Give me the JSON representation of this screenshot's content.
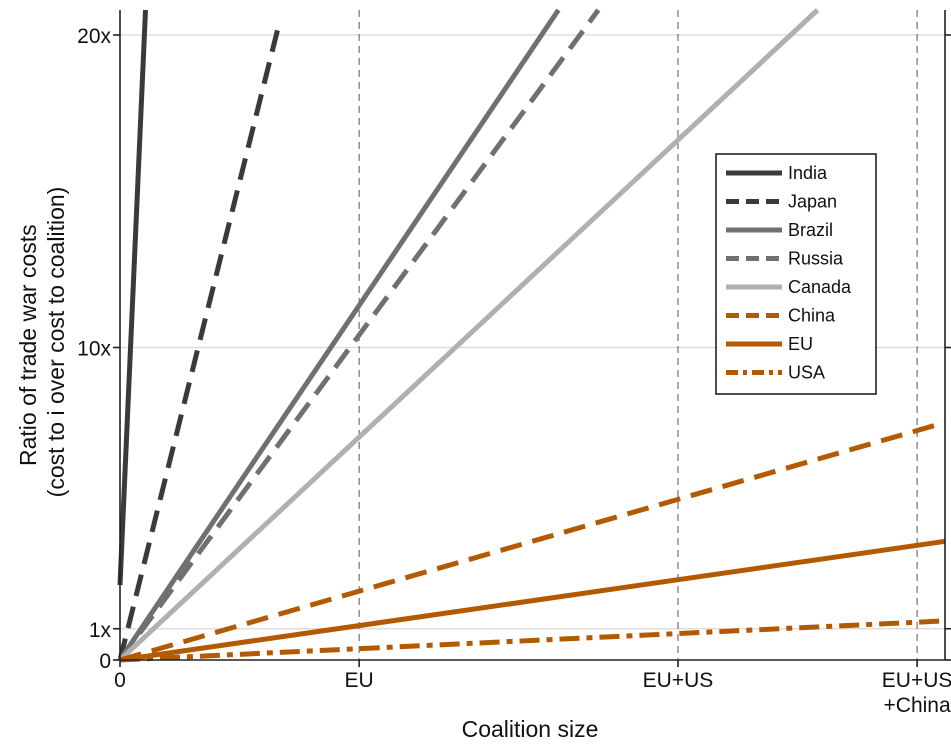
{
  "chart_data": {
    "type": "line",
    "title": "",
    "xlabel": "Coalition size",
    "ylabel": [
      "Ratio of trade war costs",
      "(cost to i over cost to coalition)"
    ],
    "xlim": [
      0,
      1.035
    ],
    "ylim": [
      0,
      20.8
    ],
    "x_ticks": [
      {
        "value": 0,
        "label": [
          "0"
        ]
      },
      {
        "value": 0.3,
        "label": [
          "EU"
        ]
      },
      {
        "value": 0.7,
        "label": [
          "EU+US"
        ]
      },
      {
        "value": 1.0,
        "label": [
          "EU+US",
          "+China"
        ]
      }
    ],
    "y_ticks": [
      {
        "value": 0,
        "label": "0"
      },
      {
        "value": 1,
        "label": "1x"
      },
      {
        "value": 10,
        "label": "10x"
      },
      {
        "value": 20,
        "label": "20x"
      }
    ],
    "vertical_reference_lines": [
      0.3,
      0.7,
      1.0
    ],
    "grid": {
      "horizontal_at": [
        1,
        10,
        20
      ],
      "color": "#d9d9d9"
    },
    "legend": {
      "position": "upper-right"
    },
    "series": [
      {
        "name": "India",
        "color": "#3a3a3a",
        "dash": "solid",
        "points": [
          [
            0.0,
            2.4
          ],
          [
            0.032,
            20.8
          ]
        ]
      },
      {
        "name": "Japan",
        "color": "#3a3a3a",
        "dash": "dashed",
        "points": [
          [
            0.0,
            0.0
          ],
          [
            0.2,
            20.4
          ]
        ]
      },
      {
        "name": "Brazil",
        "color": "#707070",
        "dash": "solid",
        "points": [
          [
            0.0,
            0.0
          ],
          [
            0.55,
            20.8
          ]
        ]
      },
      {
        "name": "Russia",
        "color": "#707070",
        "dash": "dashed",
        "points": [
          [
            0.0,
            0.0
          ],
          [
            0.6,
            20.8
          ]
        ]
      },
      {
        "name": "Canada",
        "color": "#b0b0b0",
        "dash": "solid",
        "points": [
          [
            0.0,
            0.0
          ],
          [
            0.875,
            20.8
          ]
        ]
      },
      {
        "name": "China",
        "color": "#b35a00",
        "dash": "dashed",
        "points": [
          [
            0.0,
            0.0
          ],
          [
            1.035,
            7.6
          ]
        ]
      },
      {
        "name": "EU",
        "color": "#b35a00",
        "dash": "solid",
        "points": [
          [
            0.0,
            0.0
          ],
          [
            1.035,
            3.8
          ]
        ]
      },
      {
        "name": "USA",
        "color": "#b35a00",
        "dash": "dashdot",
        "points": [
          [
            0.0,
            0.0
          ],
          [
            1.035,
            1.25
          ]
        ]
      }
    ]
  }
}
